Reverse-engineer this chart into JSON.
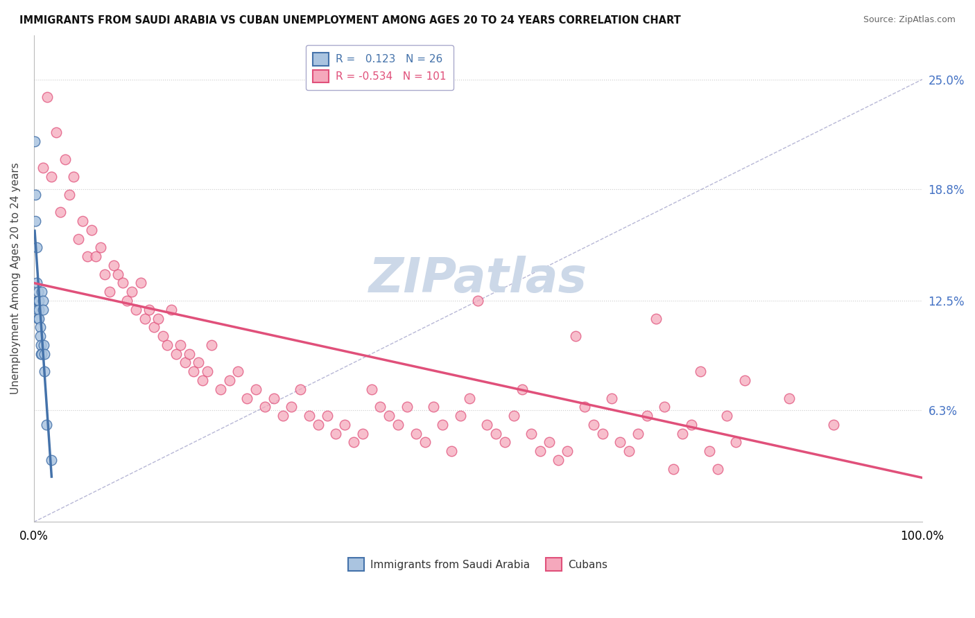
{
  "title": "IMMIGRANTS FROM SAUDI ARABIA VS CUBAN UNEMPLOYMENT AMONG AGES 20 TO 24 YEARS CORRELATION CHART",
  "source": "Source: ZipAtlas.com",
  "ylabel": "Unemployment Among Ages 20 to 24 years",
  "ytick_labels": [
    "6.3%",
    "12.5%",
    "18.8%",
    "25.0%"
  ],
  "ytick_values": [
    6.3,
    12.5,
    18.8,
    25.0
  ],
  "xlim": [
    0.0,
    100.0
  ],
  "ylim": [
    0.0,
    27.5
  ],
  "r_saudi": 0.123,
  "n_saudi": 26,
  "r_cuban": -0.534,
  "n_cuban": 101,
  "legend_labels": [
    "Immigrants from Saudi Arabia",
    "Cubans"
  ],
  "color_saudi": "#aac4e0",
  "color_cuban": "#f5a8bc",
  "color_saudi_line": "#4472aa",
  "color_cuban_line": "#e0507a",
  "watermark": "ZIPatlas",
  "watermark_color": "#ccd8e8",
  "saudi_points": [
    [
      0.1,
      21.5
    ],
    [
      0.2,
      18.5
    ],
    [
      0.2,
      17.0
    ],
    [
      0.3,
      15.5
    ],
    [
      0.3,
      13.5
    ],
    [
      0.4,
      12.5
    ],
    [
      0.4,
      12.0
    ],
    [
      0.5,
      12.5
    ],
    [
      0.5,
      11.5
    ],
    [
      0.5,
      13.0
    ],
    [
      0.6,
      12.5
    ],
    [
      0.6,
      12.0
    ],
    [
      0.6,
      11.5
    ],
    [
      0.7,
      11.0
    ],
    [
      0.7,
      10.5
    ],
    [
      0.8,
      10.0
    ],
    [
      0.8,
      9.5
    ],
    [
      0.9,
      9.5
    ],
    [
      0.9,
      13.0
    ],
    [
      1.0,
      12.5
    ],
    [
      1.0,
      12.0
    ],
    [
      1.1,
      10.0
    ],
    [
      1.2,
      9.5
    ],
    [
      1.2,
      8.5
    ],
    [
      1.4,
      5.5
    ],
    [
      2.0,
      3.5
    ]
  ],
  "cuban_points": [
    [
      1.0,
      20.0
    ],
    [
      1.5,
      24.0
    ],
    [
      2.0,
      19.5
    ],
    [
      2.5,
      22.0
    ],
    [
      3.0,
      17.5
    ],
    [
      3.5,
      20.5
    ],
    [
      4.0,
      18.5
    ],
    [
      4.5,
      19.5
    ],
    [
      5.0,
      16.0
    ],
    [
      5.5,
      17.0
    ],
    [
      6.0,
      15.0
    ],
    [
      6.5,
      16.5
    ],
    [
      7.0,
      15.0
    ],
    [
      7.5,
      15.5
    ],
    [
      8.0,
      14.0
    ],
    [
      8.5,
      13.0
    ],
    [
      9.0,
      14.5
    ],
    [
      9.5,
      14.0
    ],
    [
      10.0,
      13.5
    ],
    [
      10.5,
      12.5
    ],
    [
      11.0,
      13.0
    ],
    [
      11.5,
      12.0
    ],
    [
      12.0,
      13.5
    ],
    [
      12.5,
      11.5
    ],
    [
      13.0,
      12.0
    ],
    [
      13.5,
      11.0
    ],
    [
      14.0,
      11.5
    ],
    [
      14.5,
      10.5
    ],
    [
      15.0,
      10.0
    ],
    [
      15.5,
      12.0
    ],
    [
      16.0,
      9.5
    ],
    [
      16.5,
      10.0
    ],
    [
      17.0,
      9.0
    ],
    [
      17.5,
      9.5
    ],
    [
      18.0,
      8.5
    ],
    [
      18.5,
      9.0
    ],
    [
      19.0,
      8.0
    ],
    [
      19.5,
      8.5
    ],
    [
      20.0,
      10.0
    ],
    [
      21.0,
      7.5
    ],
    [
      22.0,
      8.0
    ],
    [
      23.0,
      8.5
    ],
    [
      24.0,
      7.0
    ],
    [
      25.0,
      7.5
    ],
    [
      26.0,
      6.5
    ],
    [
      27.0,
      7.0
    ],
    [
      28.0,
      6.0
    ],
    [
      29.0,
      6.5
    ],
    [
      30.0,
      7.5
    ],
    [
      31.0,
      6.0
    ],
    [
      32.0,
      5.5
    ],
    [
      33.0,
      6.0
    ],
    [
      34.0,
      5.0
    ],
    [
      35.0,
      5.5
    ],
    [
      36.0,
      4.5
    ],
    [
      37.0,
      5.0
    ],
    [
      38.0,
      7.5
    ],
    [
      39.0,
      6.5
    ],
    [
      40.0,
      6.0
    ],
    [
      41.0,
      5.5
    ],
    [
      42.0,
      6.5
    ],
    [
      43.0,
      5.0
    ],
    [
      44.0,
      4.5
    ],
    [
      45.0,
      6.5
    ],
    [
      46.0,
      5.5
    ],
    [
      47.0,
      4.0
    ],
    [
      48.0,
      6.0
    ],
    [
      49.0,
      7.0
    ],
    [
      50.0,
      12.5
    ],
    [
      51.0,
      5.5
    ],
    [
      52.0,
      5.0
    ],
    [
      53.0,
      4.5
    ],
    [
      54.0,
      6.0
    ],
    [
      55.0,
      7.5
    ],
    [
      56.0,
      5.0
    ],
    [
      57.0,
      4.0
    ],
    [
      58.0,
      4.5
    ],
    [
      59.0,
      3.5
    ],
    [
      60.0,
      4.0
    ],
    [
      61.0,
      10.5
    ],
    [
      62.0,
      6.5
    ],
    [
      63.0,
      5.5
    ],
    [
      64.0,
      5.0
    ],
    [
      65.0,
      7.0
    ],
    [
      66.0,
      4.5
    ],
    [
      67.0,
      4.0
    ],
    [
      68.0,
      5.0
    ],
    [
      69.0,
      6.0
    ],
    [
      70.0,
      11.5
    ],
    [
      71.0,
      6.5
    ],
    [
      72.0,
      3.0
    ],
    [
      73.0,
      5.0
    ],
    [
      74.0,
      5.5
    ],
    [
      75.0,
      8.5
    ],
    [
      76.0,
      4.0
    ],
    [
      77.0,
      3.0
    ],
    [
      78.0,
      6.0
    ],
    [
      79.0,
      4.5
    ],
    [
      80.0,
      8.0
    ],
    [
      85.0,
      7.0
    ],
    [
      90.0,
      5.5
    ]
  ],
  "saudi_line": [
    0.1,
    2.0,
    11.0,
    13.5
  ],
  "cuban_line_x": [
    0.0,
    100.0
  ],
  "cuban_line_y": [
    13.5,
    2.5
  ],
  "diag_line_x": [
    0.0,
    100.0
  ],
  "diag_line_y": [
    0.0,
    25.0
  ]
}
